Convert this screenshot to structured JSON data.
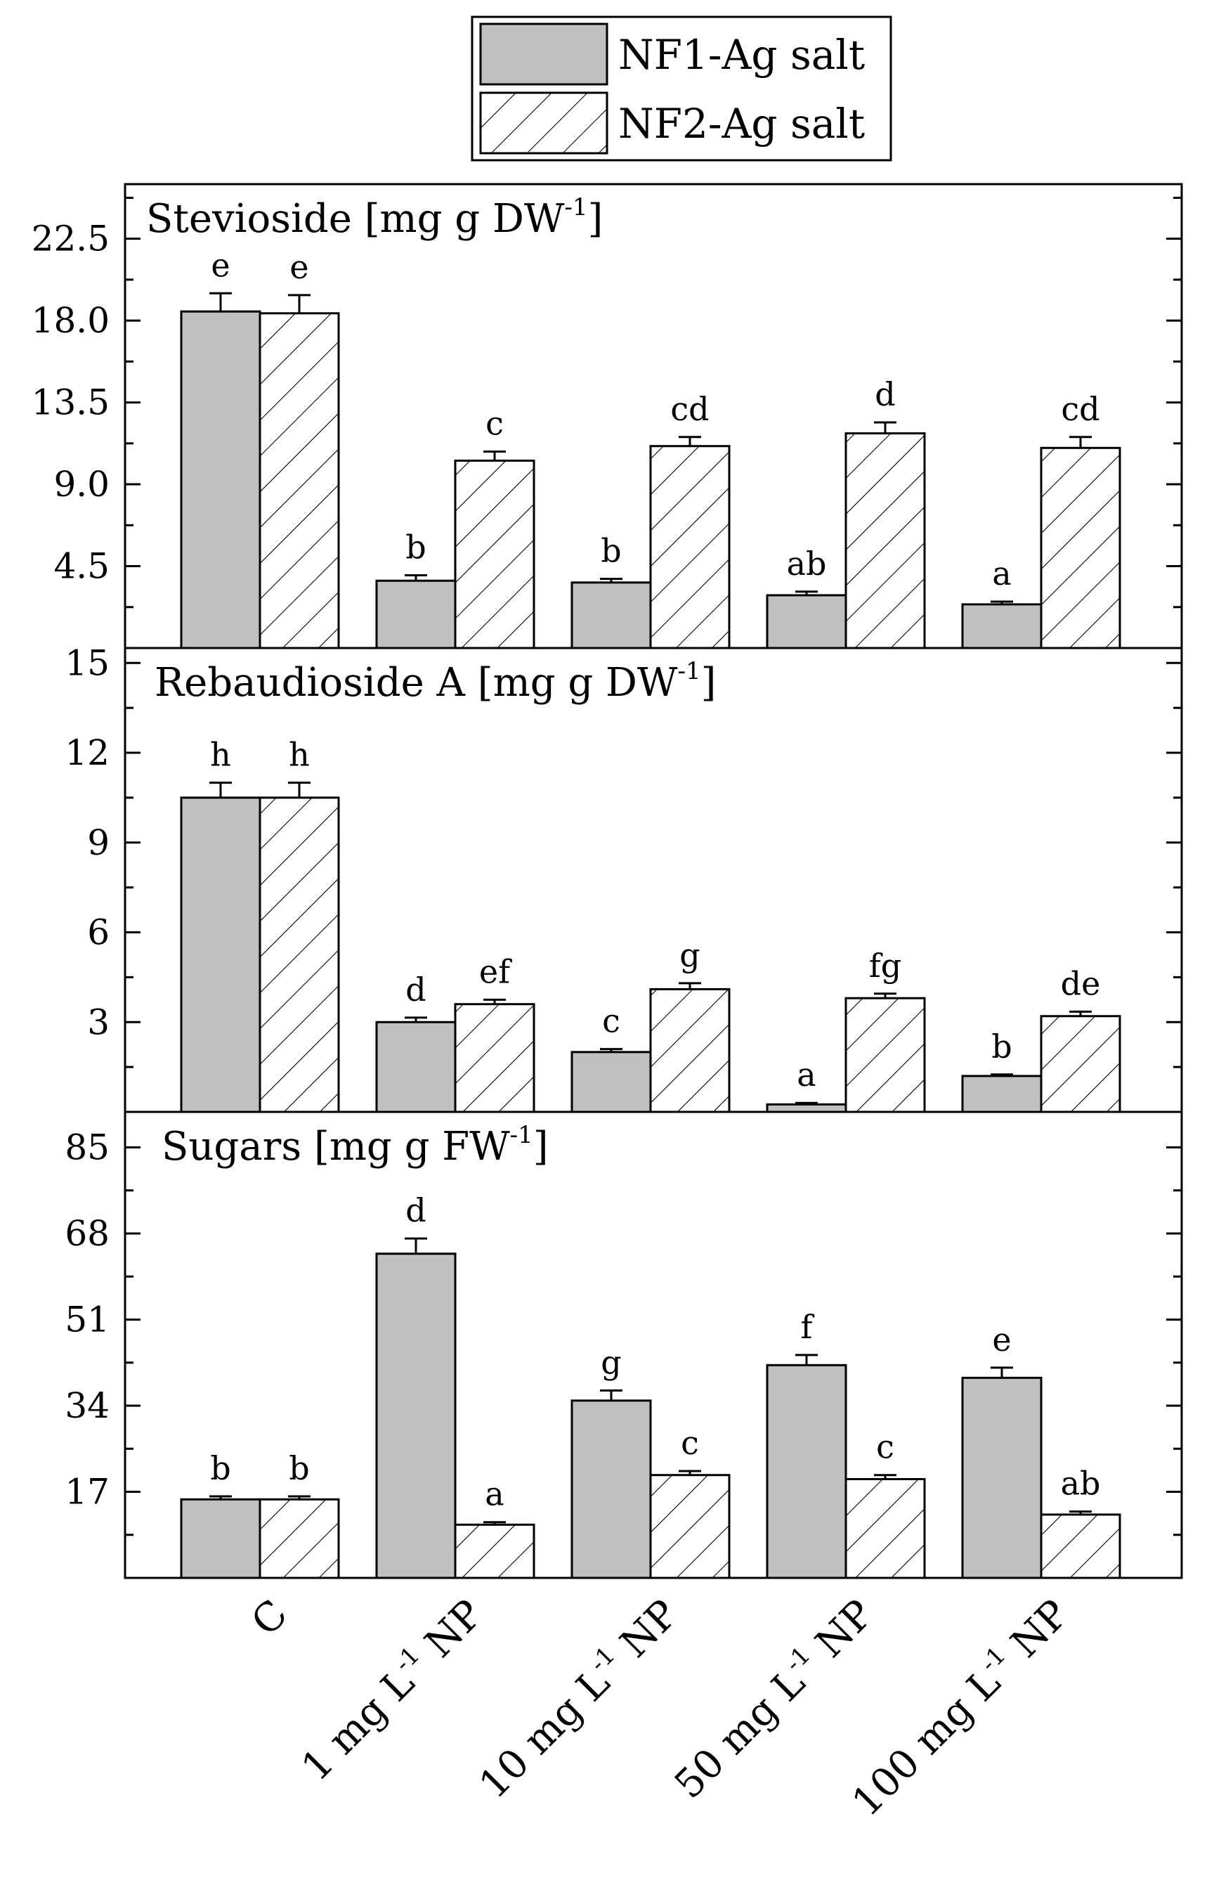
{
  "legend": [
    {
      "label": "NF1-Ag salt",
      "style": "gray-fill"
    },
    {
      "label": "NF2-Ag salt",
      "style": "hatched"
    }
  ],
  "categories": [
    {
      "main": "C",
      "sup": "",
      "tail": ""
    },
    {
      "main": "1 mg L",
      "sup": "-1",
      "tail": " NP"
    },
    {
      "main": "10 mg L",
      "sup": "-1",
      "tail": " NP"
    },
    {
      "main": "50 mg L",
      "sup": "-1",
      "tail": " NP"
    },
    {
      "main": "100 mg L",
      "sup": "-1",
      "tail": " NP"
    }
  ],
  "colors": {
    "bar_fill": "#c0c0c0",
    "hatch_fill": "#ffffff",
    "axis": "#000000"
  },
  "chart_data": [
    {
      "type": "bar",
      "title": "Stevioside [mg g DW",
      "title_sup": "-1",
      "title_end": "]",
      "categories": [
        "C",
        "1 mg L-1 NP",
        "10 mg L-1 NP",
        "50 mg L-1 NP",
        "100 mg L-1 NP"
      ],
      "ylim": [
        0,
        25.5
      ],
      "yticks": [
        4.5,
        9.0,
        13.5,
        18.0,
        22.5
      ],
      "ytick_labels": [
        "4.5",
        "9.0",
        "13.5",
        "18.0",
        "22.5"
      ],
      "series": [
        {
          "name": "NF1-Ag salt",
          "values": [
            18.5,
            3.7,
            3.6,
            2.9,
            2.4
          ],
          "errors": [
            1.0,
            0.3,
            0.2,
            0.2,
            0.15
          ],
          "labels": [
            "e",
            "b",
            "b",
            "ab",
            "a"
          ]
        },
        {
          "name": "NF2-Ag salt",
          "values": [
            18.4,
            10.3,
            11.1,
            11.8,
            11.0
          ],
          "errors": [
            1.0,
            0.5,
            0.5,
            0.6,
            0.6
          ],
          "labels": [
            "e",
            "c",
            "cd",
            "d",
            "cd"
          ]
        }
      ]
    },
    {
      "type": "bar",
      "title": "Rebaudioside A [mg g DW",
      "title_sup": "-1",
      "title_end": "]",
      "categories": [
        "C",
        "1 mg L-1 NP",
        "10 mg L-1 NP",
        "50 mg L-1 NP",
        "100 mg L-1 NP"
      ],
      "ylim": [
        0,
        15.5
      ],
      "yticks": [
        3,
        6,
        9,
        12,
        15
      ],
      "ytick_labels": [
        "3",
        "6",
        "9",
        "12",
        "15"
      ],
      "series": [
        {
          "name": "NF1-Ag salt",
          "values": [
            10.5,
            3.0,
            2.0,
            0.25,
            1.2
          ],
          "errors": [
            0.5,
            0.15,
            0.1,
            0.05,
            0.05
          ],
          "labels": [
            "h",
            "d",
            "c",
            "a",
            "b"
          ]
        },
        {
          "name": "NF2-Ag salt",
          "values": [
            10.5,
            3.6,
            4.1,
            3.8,
            3.2
          ],
          "errors": [
            0.5,
            0.15,
            0.2,
            0.15,
            0.15
          ],
          "labels": [
            "h",
            "ef",
            "g",
            "fg",
            "de"
          ]
        }
      ]
    },
    {
      "type": "bar",
      "title": "Sugars [mg g FW",
      "title_sup": "-1",
      "title_end": "]",
      "categories": [
        "C",
        "1 mg L-1 NP",
        "10 mg L-1 NP",
        "50 mg L-1 NP",
        "100 mg L-1 NP"
      ],
      "ylim": [
        0,
        92
      ],
      "yticks": [
        17,
        34,
        51,
        68,
        85
      ],
      "ytick_labels": [
        "17",
        "34",
        "51",
        "68",
        "85"
      ],
      "series": [
        {
          "name": "NF1-Ag salt",
          "values": [
            15.5,
            64.0,
            35.0,
            42.0,
            39.5
          ],
          "errors": [
            0.6,
            3.0,
            2.0,
            2.0,
            2.0
          ],
          "labels": [
            "b",
            "d",
            "g",
            "f",
            "e"
          ]
        },
        {
          "name": "NF2-Ag salt",
          "values": [
            15.5,
            10.5,
            20.3,
            19.5,
            12.5
          ],
          "errors": [
            0.6,
            0.5,
            0.8,
            0.8,
            0.6
          ],
          "labels": [
            "b",
            "a",
            "c",
            "c",
            "ab"
          ]
        }
      ]
    }
  ]
}
